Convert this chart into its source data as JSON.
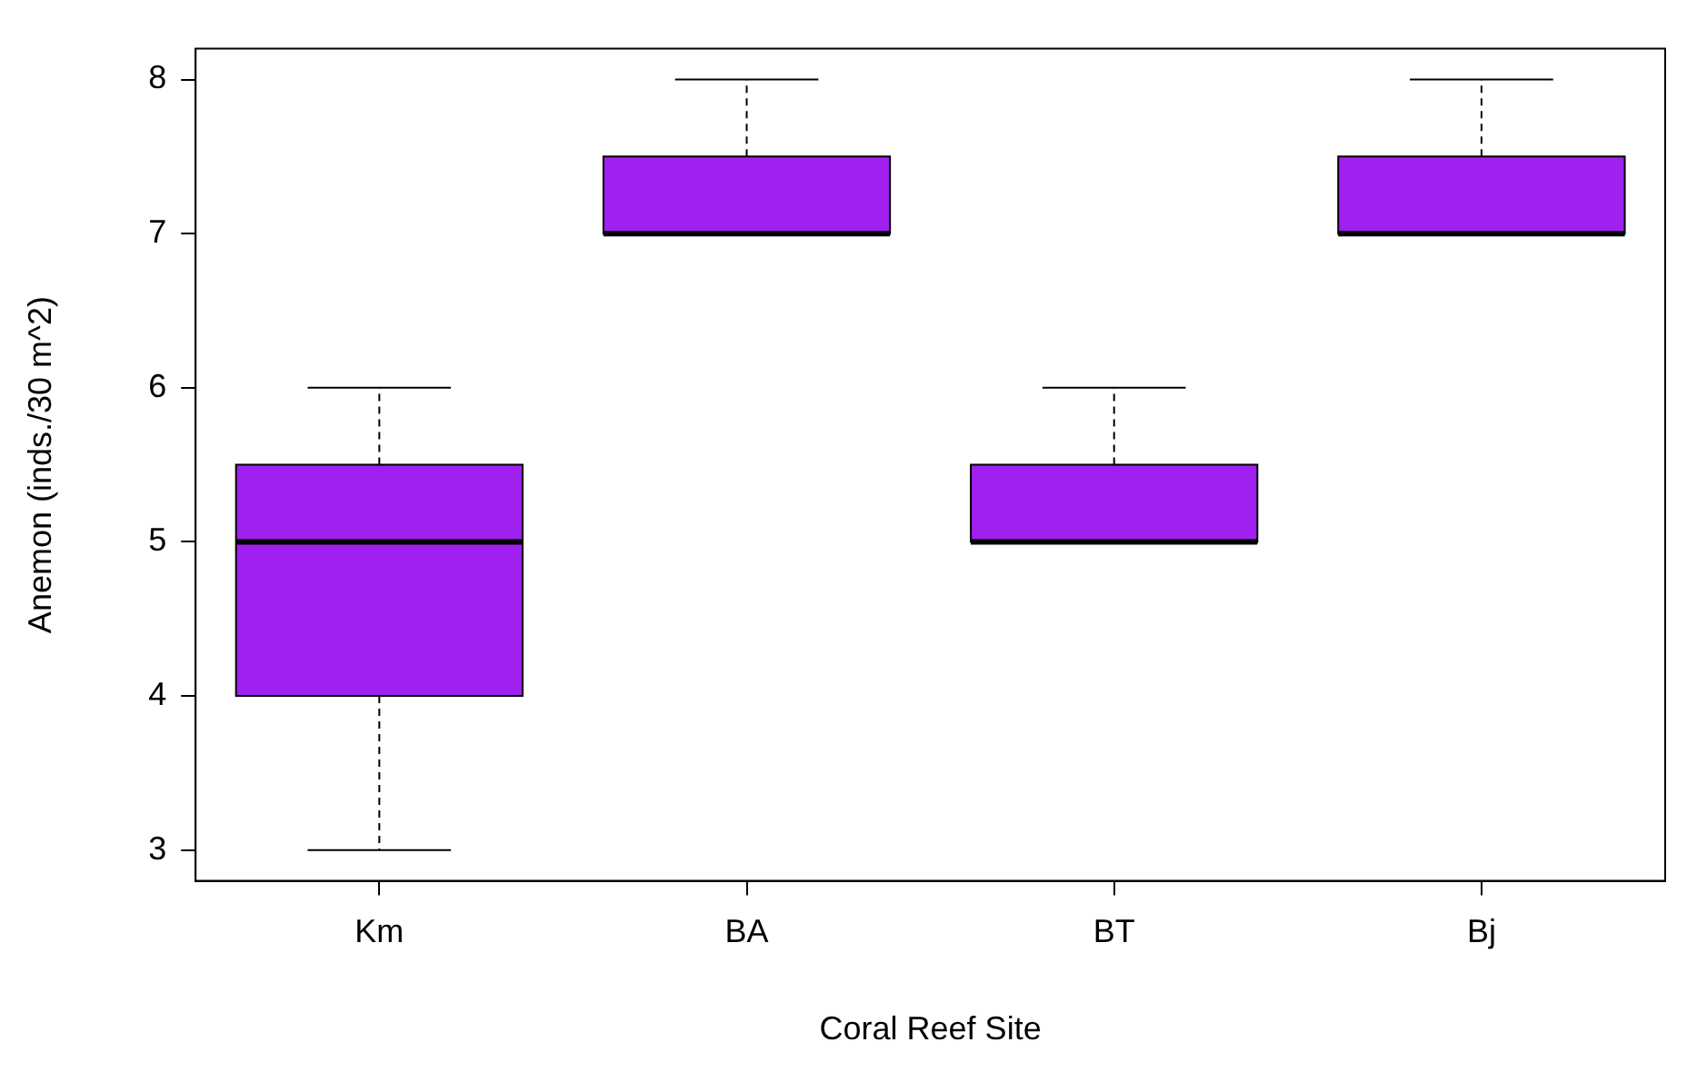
{
  "chart_data": {
    "type": "box",
    "xlabel": "Coral Reef Site",
    "ylabel": "Anemon (inds./30 m^2)",
    "categories": [
      "Km",
      "BA",
      "BT",
      "Bj"
    ],
    "color": "#a020f0",
    "boxes": [
      {
        "low": 3,
        "q1": 4,
        "median": 5,
        "q3": 5.5,
        "high": 6
      },
      {
        "low": 7,
        "q1": 7,
        "median": 7,
        "q3": 7.5,
        "high": 8
      },
      {
        "low": 5,
        "q1": 5,
        "median": 5,
        "q3": 5.5,
        "high": 6
      },
      {
        "low": 7,
        "q1": 7,
        "median": 7,
        "q3": 7.5,
        "high": 8
      }
    ],
    "ylim": [
      2.8,
      8.2
    ],
    "yticks": [
      3,
      4,
      5,
      6,
      7,
      8
    ],
    "grid": false,
    "legend": false
  }
}
